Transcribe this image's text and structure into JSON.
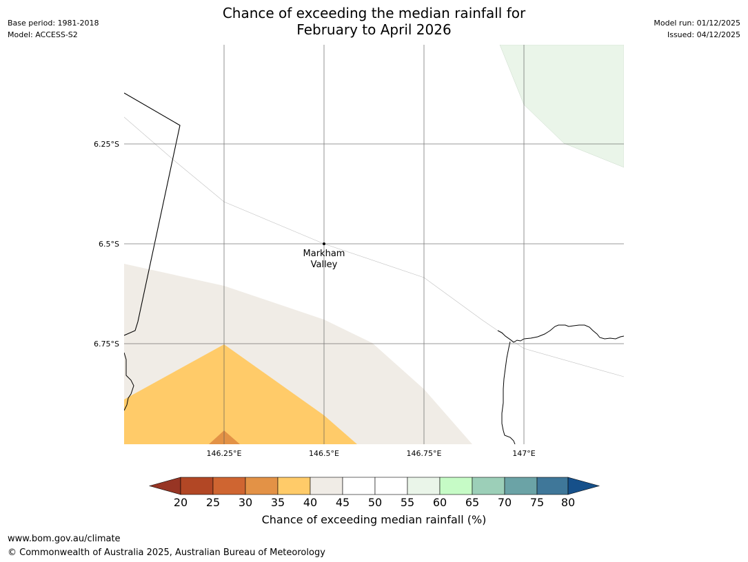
{
  "header": {
    "title_line1": "Chance of exceeding the median rainfall for",
    "title_line2": "February to April 2026",
    "base_period": "Base period: 1981-2018",
    "model": "Model: ACCESS-S2",
    "model_run": "Model run: 01/12/2025",
    "issued": "Issued: 04/12/2025"
  },
  "map": {
    "location_label_line1": "Markham",
    "location_label_line2": "Valley",
    "lat_labels": [
      "6.25°S",
      "6.5°S",
      "6.75°S"
    ],
    "lon_labels": [
      "146.25°E",
      "146.5°E",
      "146.75°E",
      "147°E"
    ],
    "lon_range": [
      146.0,
      147.25
    ],
    "lat_range": [
      -6.0,
      -7.0
    ]
  },
  "colorbar": {
    "title": "Chance of exceeding median rainfall (%)",
    "ticks": [
      "20",
      "25",
      "30",
      "35",
      "40",
      "45",
      "50",
      "55",
      "60",
      "65",
      "70",
      "75",
      "80"
    ],
    "colors": {
      "below_20": "#973524",
      "20_25": "#b24725",
      "25_30": "#cf6531",
      "30_35": "#e39246",
      "35_40": "#ffcb69",
      "40_45": "#f0ece6",
      "45_50": "#ffffff",
      "50_55": "#ffffff",
      "55_60": "#eaf5e9",
      "60_65": "#c6fbc6",
      "65_70": "#9ccfb8",
      "70_75": "#6ba3a6",
      "75_80": "#3f7799",
      "above_80": "#16508a"
    }
  },
  "footer": {
    "url": "www.bom.gov.au/climate",
    "copyright": "© Commonwealth of Australia 2025, Australian Bureau of Meteorology"
  }
}
